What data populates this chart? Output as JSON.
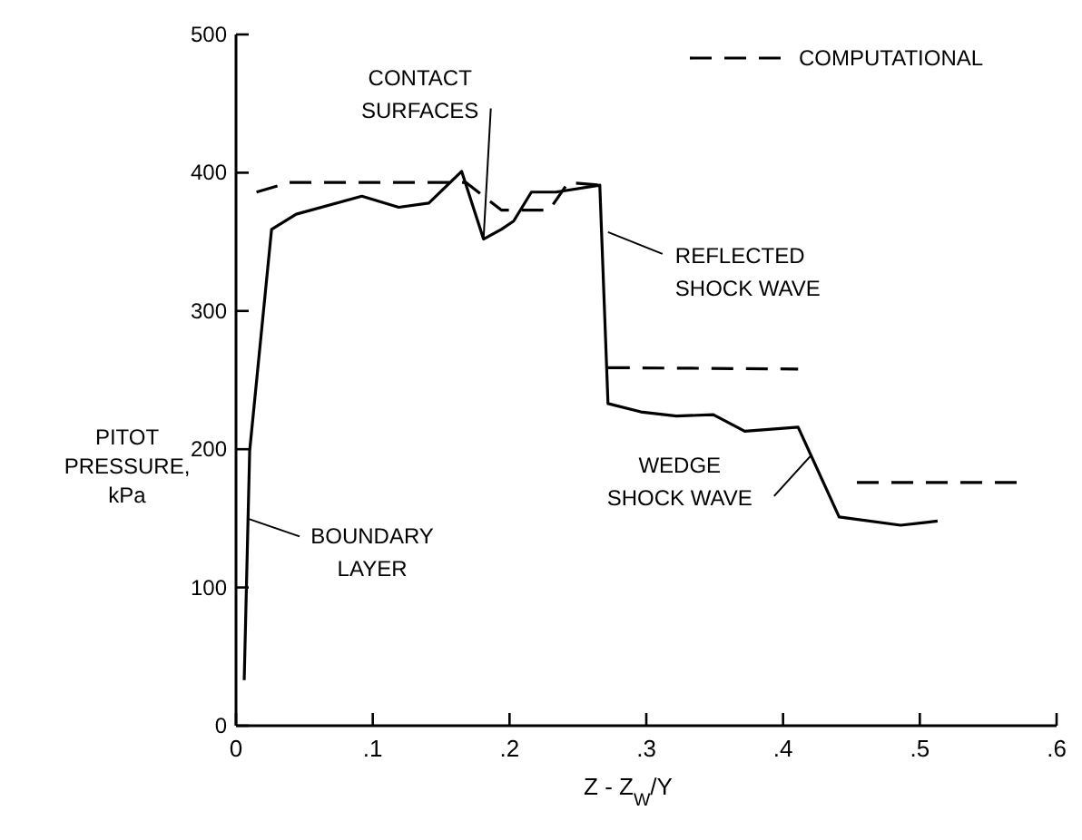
{
  "chart_data": {
    "type": "line",
    "xlabel": "Z - Z$_{W}$/Y",
    "ylabel": "PITOT PRESSURE, kPa",
    "xlim": [
      0,
      0.6
    ],
    "xticks": [
      {
        "value": 0,
        "label": "0"
      },
      {
        "value": 0.1,
        "label": ".1"
      },
      {
        "value": 0.2,
        "label": ".2"
      },
      {
        "value": 0.3,
        "label": ".3"
      },
      {
        "value": 0.4,
        "label": ".4"
      },
      {
        "value": 0.5,
        "label": ".5"
      },
      {
        "value": 0.6,
        "label": ".6"
      }
    ],
    "ylim": [
      0,
      500
    ],
    "yticks": [
      0,
      100,
      200,
      300,
      400,
      500
    ],
    "grid": false,
    "legend": "top right",
    "series": [
      {
        "color": "#000000",
        "line_style": "solid",
        "x": [
          0.006,
          0.01,
          0.026,
          0.044,
          0.092,
          0.119,
          0.141,
          0.165,
          0.181,
          0.194,
          0.203,
          0.216,
          0.234,
          0.266,
          0.272,
          0.296,
          0.322,
          0.349,
          0.372,
          0.411,
          0.441,
          0.486,
          0.513
        ],
        "values": [
          33,
          199,
          359,
          370,
          383,
          375,
          378,
          401,
          352,
          359,
          365,
          386,
          386,
          391,
          233,
          227,
          224,
          225,
          213,
          216,
          151,
          145,
          148
        ]
      },
      {
        "name": "COMPUTATIONAL",
        "color": "#000000",
        "line_style": "dashed",
        "x": [
          0.015,
          0.039,
          0.168,
          0.194,
          0.229,
          0.243,
          0.266,
          0.269,
          0.272,
          0.411,
          0.43,
          0.454,
          0.573
        ],
        "values": [
          386,
          393,
          393,
          373,
          373,
          393,
          391,
          null,
          259,
          258,
          null,
          176,
          176
        ]
      }
    ],
    "annotations": [
      {
        "text": "CONTACT SURFACES",
        "x": 0.181,
        "y": 352
      },
      {
        "text": "REFLECTED SHOCK WAVE",
        "x": 0.272,
        "y": 357
      },
      {
        "text": "WEDGE SHOCK WAVE",
        "x": 0.42,
        "y": 195
      },
      {
        "text": "BOUNDARY LAYER",
        "x": 0.008,
        "y": 150
      }
    ]
  }
}
